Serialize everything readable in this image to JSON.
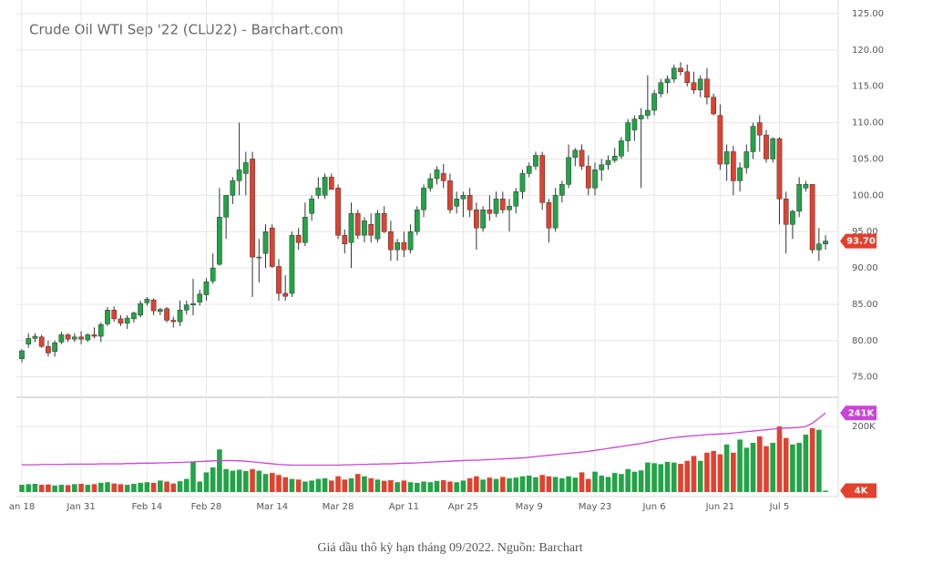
{
  "chart_data": {
    "type": "candlestick",
    "title": "Crude Oil WTI Sep '22 (CLU22) - Barchart.com",
    "categories": [
      "an 18",
      null,
      null,
      null,
      null,
      null,
      null,
      null,
      null,
      "Jan 31",
      null,
      null,
      null,
      null,
      null,
      null,
      null,
      null,
      null,
      "Feb 14",
      null,
      null,
      null,
      null,
      null,
      null,
      null,
      null,
      "Feb 28",
      null,
      null,
      null,
      null,
      null,
      null,
      null,
      null,
      null,
      "Mar 14",
      null,
      null,
      null,
      null,
      null,
      null,
      null,
      null,
      null,
      "Mar 28",
      null,
      null,
      null,
      null,
      null,
      null,
      null,
      null,
      null,
      "Apr 11",
      null,
      null,
      null,
      null,
      null,
      null,
      null,
      null,
      "Apr 25",
      null,
      null,
      null,
      null,
      null,
      null,
      null,
      null,
      null,
      "May 9",
      null,
      null,
      null,
      null,
      null,
      null,
      null,
      null,
      null,
      "May 23",
      null,
      null,
      null,
      null,
      null,
      null,
      null,
      null,
      "Jun 6",
      null,
      null,
      null,
      null,
      null,
      null,
      null,
      null,
      null,
      "Jun 21",
      null,
      null,
      null,
      null,
      null,
      null,
      null,
      null,
      "Jul 5",
      null,
      null,
      null,
      null,
      null,
      null,
      null
    ],
    "open": [
      77.5,
      79.5,
      80.3,
      80.5,
      79.2,
      78.5,
      79.8,
      80.8,
      80.2,
      80.5,
      80.1,
      80.8,
      80.6,
      82.3,
      84.2,
      83,
      82.4,
      83,
      83.5,
      85.2,
      85.6,
      84,
      84.4,
      82.8,
      82.6,
      84.2,
      84.9,
      85.3,
      86.3,
      88.2,
      90.5,
      97,
      100,
      102,
      103,
      105,
      91.5,
      92,
      95.5,
      90.2,
      86.5,
      86.5,
      94.5,
      93.5,
      97.5,
      100,
      100,
      102.5,
      101,
      94.5,
      93.5,
      97.5,
      94.5,
      96,
      94,
      97.5,
      95,
      92.5,
      93.5,
      92.5,
      95,
      98,
      101,
      102.3,
      103,
      102,
      98.5,
      99.5,
      100,
      98,
      95.5,
      98,
      97.5,
      99.5,
      98,
      98.5,
      100.5,
      103,
      104,
      105.5,
      99,
      95.5,
      100,
      101.5,
      105.2,
      106.2,
      104,
      101,
      103.5,
      104.2,
      104.8,
      105.4,
      107.5,
      109,
      110.5,
      111,
      111.7,
      114,
      115.5,
      116,
      117.5,
      117,
      115.5,
      114.5,
      116,
      113.5,
      111,
      104.3,
      106,
      102,
      103.8,
      106,
      110,
      108.3,
      105,
      107.8,
      99.5,
      96,
      97.8,
      101,
      101.5,
      92.5,
      93.3
    ],
    "high": [
      78.8,
      81,
      81,
      80.8,
      80,
      80,
      81.2,
      81,
      81,
      81.3,
      81,
      81.8,
      82.5,
      84.6,
      84.7,
      83.5,
      83.5,
      84,
      85.5,
      86,
      85.8,
      84.5,
      84.6,
      83.3,
      85.5,
      85.5,
      88.5,
      87,
      88.6,
      92,
      101,
      100,
      102.5,
      110,
      106,
      106,
      94,
      96,
      96,
      91.2,
      89,
      95,
      95.5,
      99,
      100,
      102.5,
      103,
      103,
      101.5,
      95.3,
      99,
      98,
      97,
      97.5,
      98,
      98.5,
      96.5,
      94,
      95,
      96,
      98.5,
      101.5,
      103,
      104,
      104.3,
      103,
      100.5,
      100.5,
      101,
      99,
      98.5,
      100,
      100.5,
      100.5,
      99.5,
      101,
      103.5,
      104.5,
      106,
      106,
      99.5,
      101,
      102,
      107,
      106.5,
      107,
      105.5,
      104.5,
      105,
      105.5,
      106.5,
      108,
      110.5,
      111,
      112,
      116.5,
      114.5,
      116,
      116.5,
      118,
      118.3,
      118,
      117,
      116.5,
      117.5,
      114,
      112.5,
      107,
      106.8,
      104.5,
      107,
      110,
      111,
      109,
      108,
      108,
      100.5,
      98,
      102.5,
      102,
      101.5,
      95.5,
      94.5
    ],
    "low": [
      77,
      79,
      79.8,
      79,
      77.8,
      77.8,
      79.5,
      79.8,
      79.8,
      79.5,
      79.8,
      80.3,
      79.8,
      82,
      82.6,
      82,
      81.6,
      82.5,
      83.2,
      84.8,
      83.5,
      83.5,
      82.5,
      81.8,
      82,
      83.6,
      83.5,
      84.8,
      85.5,
      87.8,
      90.3,
      94,
      98.8,
      100,
      100,
      86,
      88,
      90,
      90,
      85.5,
      85.5,
      86,
      92.5,
      93,
      96.5,
      99.5,
      99.5,
      101,
      94,
      92,
      90,
      94,
      93.5,
      93.5,
      93.5,
      94.8,
      91,
      91,
      91.5,
      92,
      94.5,
      97,
      100.5,
      101.5,
      101,
      97.5,
      97.5,
      97,
      97,
      92.5,
      95,
      96.5,
      97,
      97.5,
      95,
      97.5,
      99.5,
      102.5,
      103.5,
      98,
      93.5,
      95,
      99,
      101,
      104,
      103.5,
      100,
      100,
      102,
      103.5,
      104.5,
      105,
      106,
      107.5,
      101,
      110.5,
      111,
      113.5,
      114,
      115.5,
      116.5,
      115,
      114,
      113.5,
      112.5,
      111,
      103.5,
      102,
      100,
      100.5,
      103,
      105,
      106,
      104.5,
      104.5,
      96,
      92,
      94,
      97,
      100.5,
      92,
      91,
      92.5
    ],
    "close": [
      78.6,
      80.3,
      80.6,
      79.2,
      78.3,
      79.7,
      80.8,
      80.2,
      80.5,
      80.2,
      80.8,
      80.6,
      82.2,
      84.2,
      83,
      82.4,
      83.1,
      83.8,
      85.1,
      85.7,
      84.1,
      84.3,
      82.8,
      82.6,
      84.2,
      84.9,
      85.1,
      86.4,
      88.1,
      90,
      97,
      100,
      102,
      103.5,
      104.5,
      91.5,
      91.5,
      95,
      90.2,
      86.5,
      86.1,
      94.5,
      93.5,
      97,
      99.5,
      101,
      102.5,
      100.8,
      94.5,
      93.3,
      97.5,
      94.5,
      96.5,
      94.5,
      97.5,
      95,
      92.5,
      93.5,
      92.5,
      95,
      98,
      101,
      102.3,
      103.5,
      102,
      98,
      99.5,
      100,
      98,
      95.5,
      98,
      97.5,
      99.5,
      98,
      98.5,
      100.5,
      103,
      104,
      105.5,
      99,
      95.5,
      100,
      101.5,
      105.2,
      106.2,
      104,
      101,
      103.5,
      104.2,
      104.8,
      105.4,
      107.5,
      110,
      110.5,
      111,
      111.7,
      114,
      115.5,
      116,
      117.5,
      117,
      115.5,
      114.5,
      116,
      113.5,
      111.2,
      104.3,
      106,
      102,
      103.8,
      106,
      109.5,
      108.3,
      105,
      107.8,
      99.5,
      96,
      97.8,
      101.5,
      101.5,
      92.5,
      93.3,
      93.7
    ],
    "ylim": [
      72.2,
      125
    ],
    "grid": true,
    "up_color": "#22a447",
    "down_color": "#e3402e",
    "yticks": [
      {
        "value": 75,
        "label": "75.00"
      },
      {
        "value": 80,
        "label": "80.00"
      },
      {
        "value": 85,
        "label": "85.00"
      },
      {
        "value": 90,
        "label": "90.00"
      },
      {
        "value": 95,
        "label": "95.00"
      },
      {
        "value": 100,
        "label": "100.00"
      },
      {
        "value": 105,
        "label": "105.00"
      },
      {
        "value": 110,
        "label": "110.00"
      },
      {
        "value": 115,
        "label": "115.00"
      },
      {
        "value": 120,
        "label": "120.00"
      },
      {
        "value": 125,
        "label": "125.00"
      }
    ],
    "last_marker": {
      "value": 93.7,
      "label": "93.70",
      "color": "#e3402e"
    },
    "volume": {
      "ylim": [
        0,
        289
      ],
      "yticks": [
        {
          "value": 200,
          "label": "200K"
        }
      ],
      "values": [
        22,
        24,
        25,
        22,
        23,
        20,
        22,
        21,
        24,
        25,
        22,
        24,
        28,
        30,
        26,
        24,
        22,
        25,
        28,
        30,
        28,
        35,
        32,
        26,
        33,
        40,
        92,
        32,
        60,
        75,
        130,
        70,
        65,
        68,
        64,
        70,
        65,
        55,
        58,
        52,
        45,
        40,
        38,
        32,
        35,
        40,
        42,
        35,
        48,
        38,
        42,
        55,
        48,
        42,
        38,
        34,
        36,
        30,
        35,
        30,
        28,
        32,
        30,
        34,
        36,
        32,
        30,
        35,
        42,
        48,
        38,
        44,
        40,
        46,
        42,
        44,
        48,
        50,
        45,
        52,
        48,
        46,
        42,
        48,
        44,
        60,
        40,
        62,
        50,
        46,
        58,
        55,
        70,
        62,
        66,
        90,
        88,
        85,
        92,
        90,
        86,
        95,
        110,
        95,
        120,
        125,
        115,
        145,
        120,
        160,
        135,
        150,
        170,
        140,
        150,
        200,
        165,
        145,
        150,
        175,
        195,
        190,
        4
      ],
      "line": {
        "color": "#c945d6",
        "values": [
          83,
          83,
          83,
          84,
          84,
          84,
          84,
          85,
          85,
          85,
          85,
          85,
          86,
          86,
          86,
          86,
          87,
          87,
          88,
          88,
          88,
          89,
          89,
          90,
          90,
          91,
          92,
          93,
          94,
          95,
          96,
          96,
          96,
          95,
          94,
          92,
          90,
          88,
          86,
          84,
          83,
          82,
          82,
          82,
          82,
          82,
          82,
          82,
          82,
          83,
          83,
          84,
          84,
          85,
          85,
          86,
          86,
          87,
          88,
          88,
          89,
          90,
          91,
          92,
          93,
          94,
          95,
          96,
          97,
          97,
          98,
          99,
          100,
          101,
          102,
          103,
          104,
          106,
          108,
          110,
          112,
          114,
          116,
          118,
          120,
          122,
          124,
          127,
          130,
          133,
          136,
          139,
          142,
          145,
          148,
          152,
          156,
          160,
          163,
          166,
          168,
          170,
          172,
          173,
          175,
          176,
          177,
          178,
          180,
          182,
          184,
          186,
          188,
          190,
          192,
          194,
          195,
          196,
          197,
          200,
          210,
          225,
          241
        ]
      },
      "markers": [
        {
          "value": 241,
          "label": "241K",
          "color": "#c945d6"
        },
        {
          "value": 4,
          "label": "4K",
          "color": "#e3402e"
        }
      ]
    }
  },
  "caption": "Giá dầu thô kỳ hạn tháng 09/2022. Nguồn: Barchart"
}
